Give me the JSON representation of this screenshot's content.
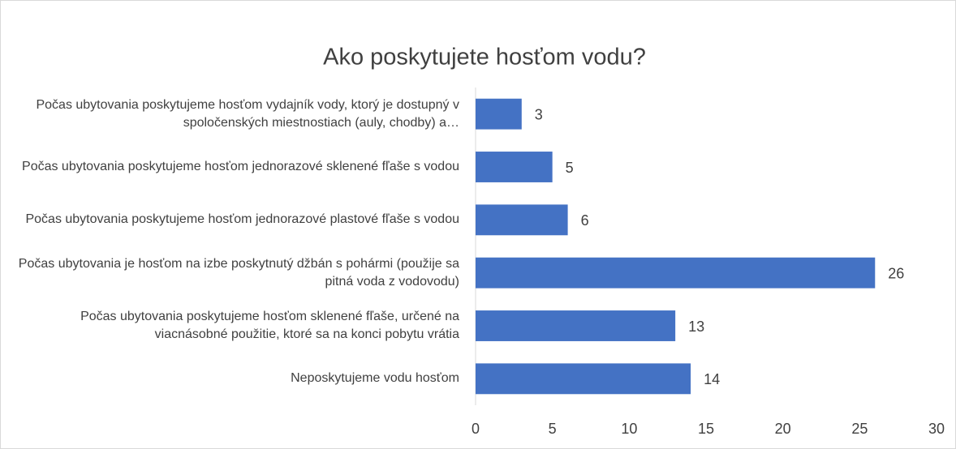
{
  "chart_data": {
    "type": "bar",
    "orientation": "horizontal",
    "title": "Ako poskytujete hosťom vodu?",
    "categories": [
      "Počas ubytovania poskytujeme hosťom vydajník vody, ktorý je dostupný v spoločenských miestnostiach (auly, chodby) a…",
      "Počas ubytovania poskytujeme hosťom jednorazové sklenené fľaše s vodou",
      "Počas ubytovania poskytujeme hosťom jednorazové plastové fľaše s vodou",
      "Počas ubytovania je hosťom na izbe poskytnutý džbán s pohármi (použije sa pitná voda z vodovodu)",
      "Počas ubytovania poskytujeme hosťom sklenené fľaše, určené na viacnásobné použitie, ktoré sa na konci pobytu vrátia",
      "Neposkytujeme vodu hosťom"
    ],
    "values": [
      3,
      5,
      6,
      26,
      13,
      14
    ],
    "color": "#4472c4",
    "xlim": [
      0,
      30
    ],
    "xticks": [
      0,
      5,
      10,
      15,
      20,
      25,
      30
    ],
    "grid": false
  }
}
